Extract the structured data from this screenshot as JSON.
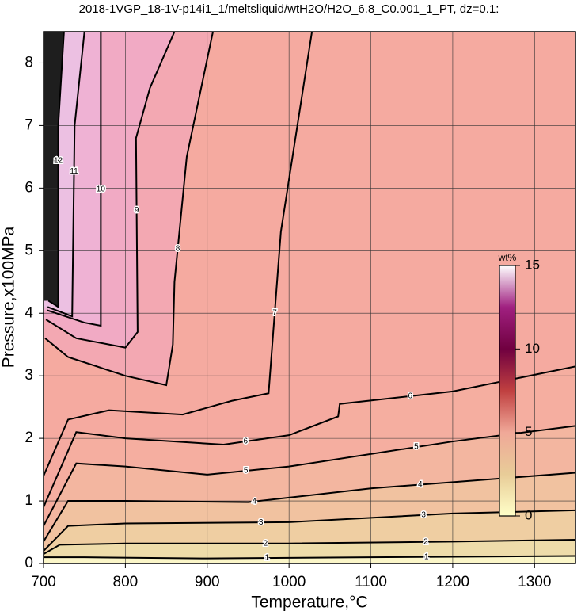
{
  "chart_data": {
    "type": "contour",
    "title": "2018-1VGP_18-1V-p14i1_1/meltsliquid/wtH2O/H2O_6.8_C0.001_1_PT, dz=0.1:",
    "x_label": "Temperature,°C",
    "y_label": "Pressure,x100MPa",
    "xlim": [
      700,
      1350
    ],
    "ylim": [
      0,
      8.5
    ],
    "xticks": [
      700,
      800,
      900,
      1000,
      1100,
      1200,
      1300
    ],
    "yticks": [
      0,
      1,
      2,
      3,
      4,
      5,
      6,
      7,
      8
    ],
    "grid": true,
    "background": "#f5aaa0",
    "base_fill": "#fbf6c8",
    "contours": [
      {
        "level": 1,
        "fill": "#f4ecb8",
        "x": [
          700,
          750,
          900,
          1100,
          1350
        ],
        "y": [
          0.1,
          0.1,
          0.08,
          0.1,
          0.12
        ]
      },
      {
        "level": 2,
        "fill": "#eedcaa",
        "x": [
          700,
          720,
          800,
          1000,
          1200,
          1350
        ],
        "y": [
          0.15,
          0.3,
          0.32,
          0.32,
          0.35,
          0.38
        ]
      },
      {
        "level": 3,
        "fill": "#efcea2",
        "x": [
          700,
          730,
          800,
          1000,
          1200,
          1350
        ],
        "y": [
          0.2,
          0.6,
          0.64,
          0.66,
          0.8,
          0.85
        ]
      },
      {
        "level": 4,
        "fill": "#f1c2a0",
        "x": [
          700,
          730,
          800,
          950,
          1100,
          1350
        ],
        "y": [
          0.35,
          1.0,
          1.0,
          0.98,
          1.2,
          1.45
        ]
      },
      {
        "level": 5,
        "fill": "#f3b6a0",
        "x": [
          700,
          740,
          800,
          900,
          1000,
          1200,
          1350
        ],
        "y": [
          0.6,
          1.6,
          1.55,
          1.42,
          1.55,
          1.95,
          2.2
        ]
      },
      {
        "level": 6,
        "fill": "#f5aea0",
        "x": [
          700,
          740,
          800,
          920,
          1000,
          1060,
          1062,
          1200,
          1350
        ],
        "y": [
          0.9,
          2.1,
          2.0,
          1.9,
          2.05,
          2.35,
          2.55,
          2.75,
          3.15
        ]
      },
      {
        "level": 7,
        "fill": "#f5aaa0",
        "x": [
          700,
          730,
          780,
          870,
          930,
          975,
          990,
          1028
        ],
        "y": [
          1.4,
          2.3,
          2.45,
          2.38,
          2.6,
          2.72,
          5.3,
          8.5
        ]
      },
      {
        "level": 8,
        "fill": "#f3a8b2",
        "x": [
          702,
          730,
          800,
          850,
          858,
          860,
          875,
          907
        ],
        "y": [
          3.6,
          3.3,
          3.0,
          2.85,
          3.5,
          4.5,
          6.5,
          8.5
        ]
      },
      {
        "level": 9,
        "fill": "#f1aac4",
        "x": [
          703,
          740,
          800,
          815,
          813,
          830,
          860
        ],
        "y": [
          3.9,
          3.6,
          3.45,
          3.7,
          6.8,
          7.6,
          8.5
        ]
      },
      {
        "level": 10,
        "fill": "#efb2d4",
        "x": [
          704,
          750,
          770,
          770
        ],
        "y": [
          4.05,
          3.85,
          3.8,
          8.5
        ]
      },
      {
        "level": 11,
        "fill": "#ecc0e2",
        "x": [
          705,
          735,
          738,
          750
        ],
        "y": [
          4.1,
          3.95,
          7,
          8.5
        ]
      },
      {
        "level": 12,
        "fill": "#1e1e1e",
        "x": [
          706,
          718,
          718,
          725
        ],
        "y": [
          4.2,
          4.1,
          7,
          8.5
        ]
      }
    ],
    "colorbar": {
      "label": "wt%",
      "lim": [
        0,
        15
      ],
      "ticks": [
        0,
        5,
        10,
        15
      ],
      "colors": [
        "#ffffc8",
        "#e8cc98",
        "#f0a898",
        "#c04040",
        "#700040",
        "#a02080",
        "#ffffff"
      ]
    }
  }
}
